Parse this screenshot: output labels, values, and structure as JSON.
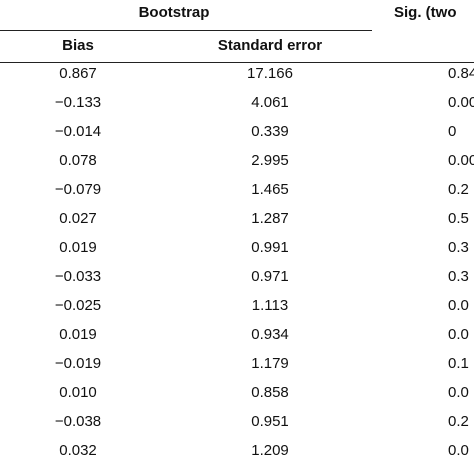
{
  "header": {
    "group1": "Bootstrap",
    "group2": "Sig. (two",
    "bias": "Bias",
    "standard_error": "Standard error"
  },
  "rows": [
    {
      "bias": "0.867",
      "se": "17.166",
      "sig": "0.84"
    },
    {
      "bias": "−0.133",
      "se": "4.061",
      "sig": "0.00"
    },
    {
      "bias": "−0.014",
      "se": "0.339",
      "sig": "0"
    },
    {
      "bias": "0.078",
      "se": "2.995",
      "sig": "0.00"
    },
    {
      "bias": "−0.079",
      "se": "1.465",
      "sig": "0.2"
    },
    {
      "bias": "0.027",
      "se": "1.287",
      "sig": "0.5"
    },
    {
      "bias": "0.019",
      "se": "0.991",
      "sig": "0.3"
    },
    {
      "bias": "−0.033",
      "se": "0.971",
      "sig": "0.3"
    },
    {
      "bias": "−0.025",
      "se": "1.113",
      "sig": "0.0"
    },
    {
      "bias": "0.019",
      "se": "0.934",
      "sig": "0.0"
    },
    {
      "bias": "−0.019",
      "se": "1.179",
      "sig": "0.1"
    },
    {
      "bias": "0.010",
      "se": "0.858",
      "sig": "0.0"
    },
    {
      "bias": "−0.038",
      "se": "0.951",
      "sig": "0.2"
    },
    {
      "bias": "0.032",
      "se": "1.209",
      "sig": "0.0"
    }
  ]
}
